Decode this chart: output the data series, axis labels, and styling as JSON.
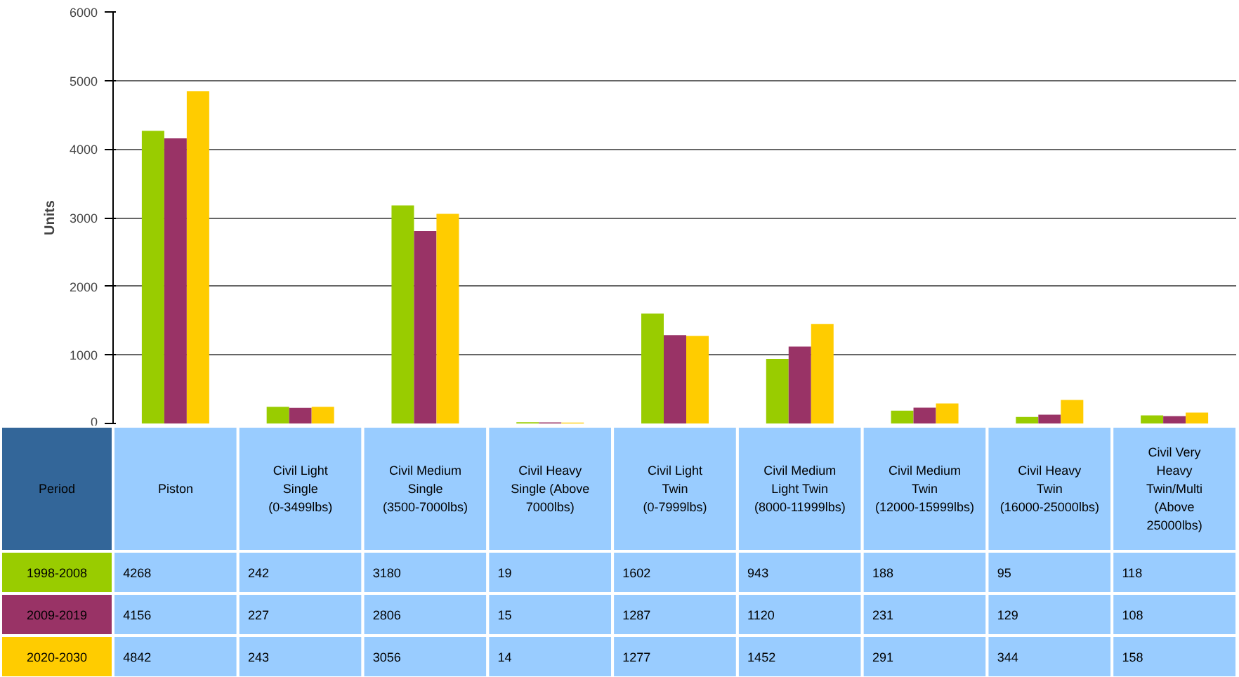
{
  "chart_data": {
    "type": "bar",
    "ylabel": "Units",
    "legend_title": "Period",
    "legend": "bottom left",
    "data_labels": true,
    "grid": "y",
    "categories": [
      "Piston",
      "Civil Light Single (0-3499lbs)",
      "Civil Medium Single (3500-7000lbs)",
      "Civil Heavy Single (Above 7000lbs)",
      "Civil Light Twin (0-7999lbs)",
      "Civil Medium Light Twin (8000-11999lbs)",
      "Civil Medium Twin (12000-15999lbs)",
      "Civil Heavy Twin (16000-25000lbs)",
      "Civil Very Heavy Twin/Multi (Above 25000lbs)"
    ],
    "ylim": [
      0,
      6000
    ],
    "yticks": [
      0,
      1000,
      2000,
      3000,
      4000,
      5000,
      6000
    ],
    "series": [
      {
        "name": "1998-2008",
        "color": "#99cc00",
        "values": [
          4268,
          242,
          3180,
          19,
          1602,
          943,
          188,
          95,
          118
        ]
      },
      {
        "name": "2009-2019",
        "color": "#993366",
        "values": [
          4156,
          227,
          2806,
          15,
          1287,
          1120,
          231,
          129,
          108
        ]
      },
      {
        "name": "2020-2030",
        "color": "#ffcc00",
        "values": [
          4842,
          243,
          3056,
          14,
          1277,
          1452,
          291,
          344,
          158
        ]
      }
    ]
  }
}
